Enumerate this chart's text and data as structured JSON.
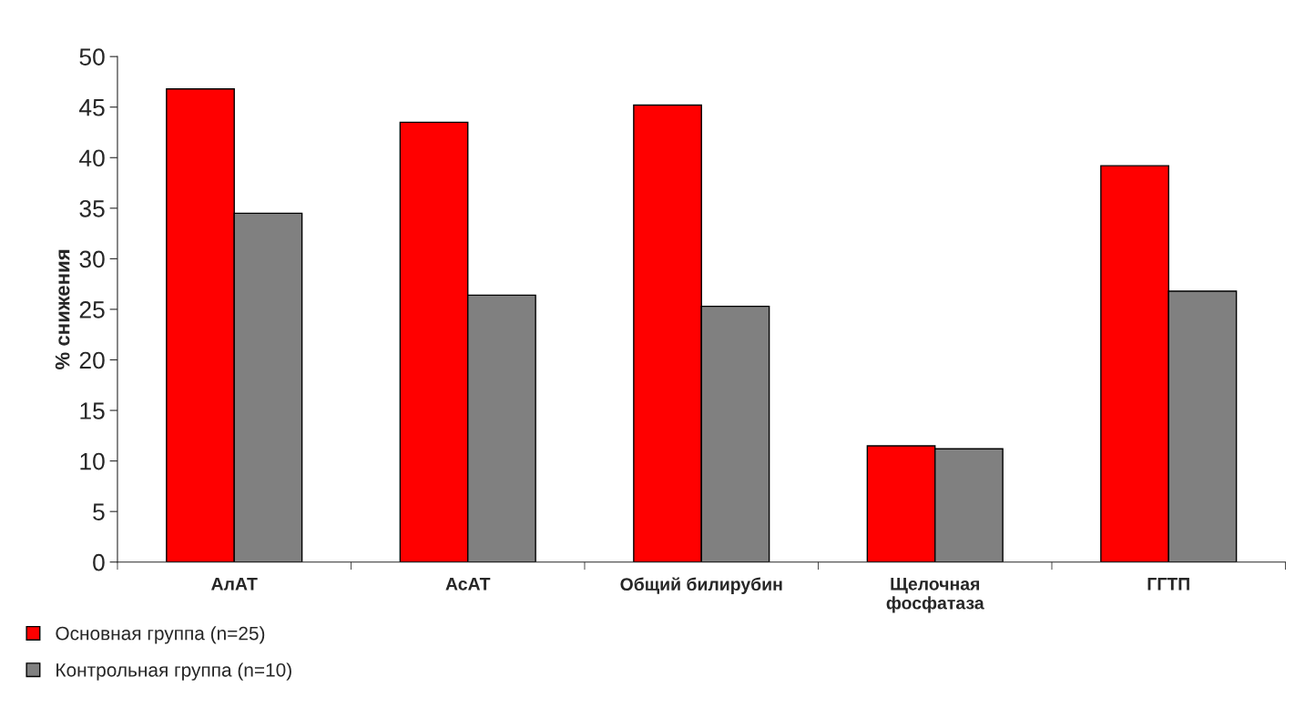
{
  "chart_data": {
    "type": "bar",
    "ylabel": "% снижения",
    "categories": [
      "АлАТ",
      "АсАТ",
      "Общий билирубин",
      "Щелочная\nфосфатаза",
      "ГГТП"
    ],
    "series": [
      {
        "name": "Основная группа (n=25)",
        "color": "#ff0000",
        "values": [
          46.8,
          43.5,
          45.2,
          11.5,
          39.2
        ]
      },
      {
        "name": "Контрольная группа (n=10)",
        "color": "#808080",
        "values": [
          34.5,
          26.4,
          25.3,
          11.2,
          26.8
        ]
      }
    ],
    "ylim": [
      0,
      50
    ],
    "yticks": [
      0,
      5,
      10,
      15,
      20,
      25,
      30,
      35,
      40,
      45,
      50
    ],
    "grid": false,
    "legend": "bottom left"
  }
}
